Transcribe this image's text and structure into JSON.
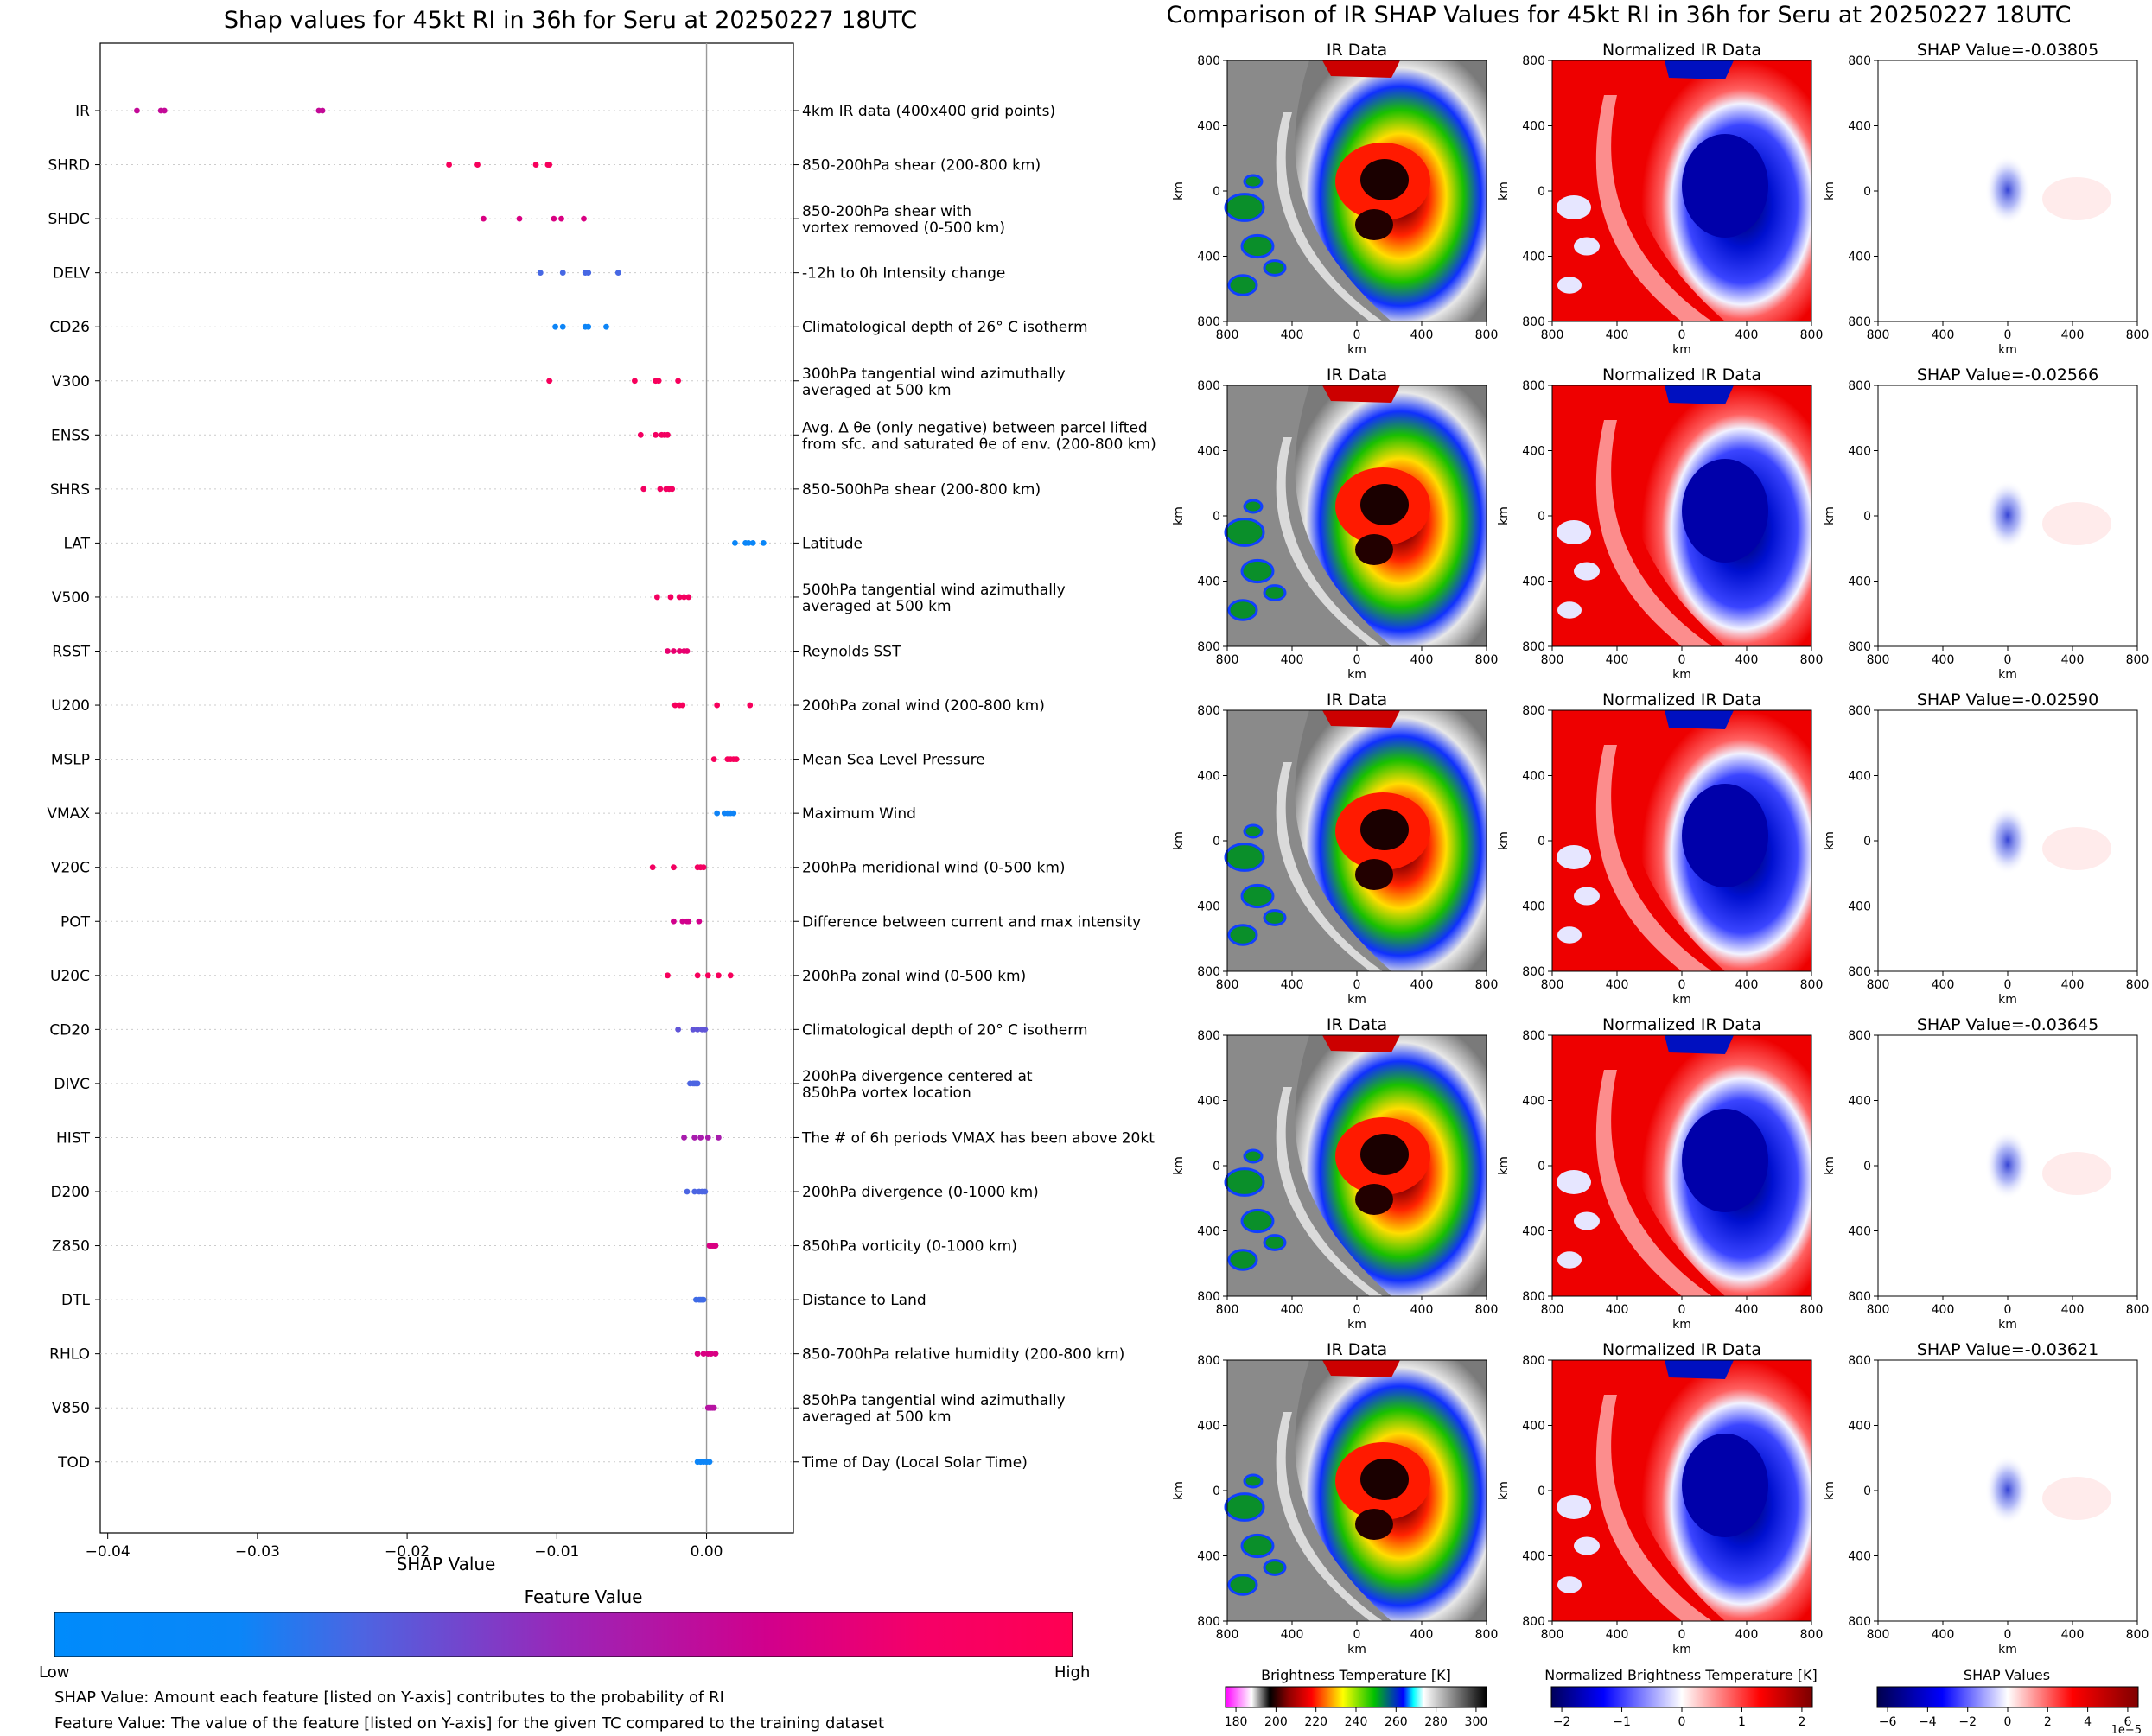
{
  "left_chart": {
    "title": "Shap values for 45kt RI in 36h for Seru at 20250227 18UTC",
    "xlabel": "SHAP Value",
    "colorbar_title": "Feature Value",
    "colorbar_low": "Low",
    "colorbar_high": "High",
    "note_shap": "SHAP Value: Amount each feature [listed on Y-axis] contributes to the probability of RI",
    "note_feature": "Feature Value: The value of the feature [listed on Y-axis] for the given TC compared to the training dataset"
  },
  "right_figure": {
    "title": "Comparison of IR SHAP Values for 45kt RI in 36h for Seru at 20250227 18UTC",
    "col_titles": [
      "IR Data",
      "Normalized IR Data"
    ],
    "shap_titles": [
      "SHAP Value=-0.03805",
      "SHAP Value=-0.02566",
      "SHAP Value=-0.02590",
      "SHAP Value=-0.03645",
      "SHAP Value=-0.03621"
    ],
    "axis_label": "km",
    "axis_ticks": [
      "800",
      "400",
      "0",
      "400",
      "800"
    ],
    "cbar_ir_label": "Brightness Temperature [K]",
    "cbar_ir_ticks": [
      "180",
      "200",
      "220",
      "240",
      "260",
      "280",
      "300"
    ],
    "cbar_norm_label": "Normalized Brightness Temperature [K]",
    "cbar_norm_ticks": [
      "−2",
      "−1",
      "0",
      "1",
      "2"
    ],
    "cbar_shap_label": "SHAP Values",
    "cbar_shap_ticks": [
      "−6",
      "−4",
      "−2",
      "0",
      "2",
      "4",
      "6"
    ],
    "cbar_shap_exponent": "1e−5"
  },
  "colors": {
    "low": "#008bfb",
    "high": "#ff0052",
    "shap_negative": "#0000cc",
    "shap_positive": "#cc0000"
  },
  "chart_data": {
    "type": "scatter",
    "title": "Shap values for 45kt RI in 36h for Seru at 20250227 18UTC",
    "xlabel": "SHAP Value",
    "xlim": [
      -0.0405,
      0.0058
    ],
    "xticks": [
      -0.04,
      -0.03,
      -0.02,
      -0.01,
      0.0
    ],
    "xtick_labels": [
      "−0.04",
      "−0.03",
      "−0.02",
      "−0.01",
      "0.00"
    ],
    "grid": false,
    "legend": "bottom colorbar (Low to High feature value)",
    "features": [
      {
        "name": "IR",
        "desc": [
          "4km IR data (400x400 grid points)"
        ],
        "fv": 0.65,
        "shap": [
          -0.03805,
          -0.03645,
          -0.03621,
          -0.0259,
          -0.02566
        ]
      },
      {
        "name": "SHRD",
        "desc": [
          "850-200hPa shear (200-800 km)"
        ],
        "fv": 0.95,
        "shap": [
          -0.0172,
          -0.0153,
          -0.0114,
          -0.0106,
          -0.0105
        ]
      },
      {
        "name": "SHDC",
        "desc": [
          "850-200hPa shear with",
          "vortex removed (0-500 km)"
        ],
        "fv": 0.75,
        "shap": [
          -0.0149,
          -0.0125,
          -0.0102,
          -0.0097,
          -0.0082
        ]
      },
      {
        "name": "DELV",
        "desc": [
          "-12h to 0h Intensity change"
        ],
        "fv": 0.28,
        "shap": [
          -0.0111,
          -0.0096,
          -0.0081,
          -0.0079,
          -0.0059
        ]
      },
      {
        "name": "CD26",
        "desc": [
          "Climatological depth of 26° C isotherm"
        ],
        "fv": 0.05,
        "shap": [
          -0.0101,
          -0.0096,
          -0.0081,
          -0.0079,
          -0.0067
        ]
      },
      {
        "name": "V300",
        "desc": [
          "300hPa tangential wind azimuthally",
          "averaged at 500 km"
        ],
        "fv": 0.95,
        "shap": [
          -0.0105,
          -0.0048,
          -0.0034,
          -0.0032,
          -0.0019
        ]
      },
      {
        "name": "ENSS",
        "desc": [
          "Avg. Δ θe (only negative) between parcel lifted",
          "from sfc. and saturated θe of env. (200-800 km)"
        ],
        "fv": 0.92,
        "shap": [
          -0.0044,
          -0.0034,
          -0.003,
          -0.0028,
          -0.0026
        ]
      },
      {
        "name": "SHRS",
        "desc": [
          "850-500hPa shear (200-800 km)"
        ],
        "fv": 0.92,
        "shap": [
          -0.0042,
          -0.0031,
          -0.0027,
          -0.0025,
          -0.0023
        ]
      },
      {
        "name": "LAT",
        "desc": [
          "Latitude"
        ],
        "fv": 0.04,
        "shap": [
          0.0019,
          0.0026,
          0.0028,
          0.0031,
          0.0038
        ]
      },
      {
        "name": "V500",
        "desc": [
          "500hPa tangential wind azimuthally",
          "averaged at 500 km"
        ],
        "fv": 0.93,
        "shap": [
          -0.0033,
          -0.0024,
          -0.0018,
          -0.0015,
          -0.0012
        ]
      },
      {
        "name": "RSST",
        "desc": [
          "Reynolds SST"
        ],
        "fv": 0.85,
        "shap": [
          -0.0026,
          -0.0022,
          -0.0018,
          -0.0015,
          -0.0013
        ]
      },
      {
        "name": "U200",
        "desc": [
          "200hPa zonal wind (200-800 km)"
        ],
        "fv": 0.95,
        "shap": [
          -0.0021,
          -0.0018,
          -0.0016,
          0.0007,
          0.0029
        ]
      },
      {
        "name": "MSLP",
        "desc": [
          "Mean Sea Level Pressure"
        ],
        "fv": 0.95,
        "shap": [
          0.0005,
          0.0014,
          0.0016,
          0.0018,
          0.002
        ]
      },
      {
        "name": "VMAX",
        "desc": [
          "Maximum Wind"
        ],
        "fv": 0.06,
        "shap": [
          0.0007,
          0.0012,
          0.0014,
          0.0016,
          0.0018
        ]
      },
      {
        "name": "V20C",
        "desc": [
          "200hPa meridional wind (0-500 km)"
        ],
        "fv": 0.92,
        "shap": [
          -0.0036,
          -0.0022,
          -0.0006,
          -0.0004,
          -0.0002
        ]
      },
      {
        "name": "POT",
        "desc": [
          "Difference between current and max intensity"
        ],
        "fv": 0.7,
        "shap": [
          -0.0022,
          -0.0016,
          -0.0013,
          -0.0012,
          -0.0005
        ]
      },
      {
        "name": "U20C",
        "desc": [
          "200hPa zonal wind (0-500 km)"
        ],
        "fv": 0.95,
        "shap": [
          -0.0026,
          -0.0006,
          0.0001,
          0.0008,
          0.0016
        ]
      },
      {
        "name": "CD20",
        "desc": [
          "Climatological depth of 20° C isotherm"
        ],
        "fv": 0.35,
        "shap": [
          -0.0019,
          -0.0009,
          -0.0006,
          -0.0003,
          -0.0001
        ]
      },
      {
        "name": "DIVC",
        "desc": [
          "200hPa divergence centered at",
          "850hPa vortex location"
        ],
        "fv": 0.3,
        "shap": [
          -0.0011,
          -0.0009,
          -0.0008,
          -0.0007,
          -0.0006
        ]
      },
      {
        "name": "HIST",
        "desc": [
          "The # of 6h periods VMAX has been above 20kt"
        ],
        "fv": 0.55,
        "shap": [
          -0.0015,
          -0.0008,
          -0.0004,
          0.0001,
          0.0008
        ]
      },
      {
        "name": "D200",
        "desc": [
          "200hPa divergence (0-1000 km)"
        ],
        "fv": 0.3,
        "shap": [
          -0.0013,
          -0.0008,
          -0.0005,
          -0.0003,
          -0.0001
        ]
      },
      {
        "name": "Z850",
        "desc": [
          "850hPa vorticity (0-1000 km)"
        ],
        "fv": 0.75,
        "shap": [
          0.0002,
          0.0003,
          0.0004,
          0.0005,
          0.0006
        ]
      },
      {
        "name": "DTL",
        "desc": [
          "Distance to Land"
        ],
        "fv": 0.25,
        "shap": [
          -0.0007,
          -0.0005,
          -0.0004,
          -0.0003,
          -0.0002
        ]
      },
      {
        "name": "RHLO",
        "desc": [
          "850-700hPa relative humidity (200-800 km)"
        ],
        "fv": 0.75,
        "shap": [
          -0.0006,
          -0.0002,
          0.0001,
          0.0003,
          0.0006
        ]
      },
      {
        "name": "V850",
        "desc": [
          "850hPa tangential wind azimuthally",
          "averaged at 500 km"
        ],
        "fv": 0.6,
        "shap": [
          0.0001,
          0.0002,
          0.0003,
          0.0004,
          0.0005
        ]
      },
      {
        "name": "TOD",
        "desc": [
          "Time of Day (Local Solar Time)"
        ],
        "fv": 0.05,
        "shap": [
          -0.0006,
          -0.0004,
          -0.0002,
          0.0,
          0.0002
        ]
      }
    ]
  }
}
